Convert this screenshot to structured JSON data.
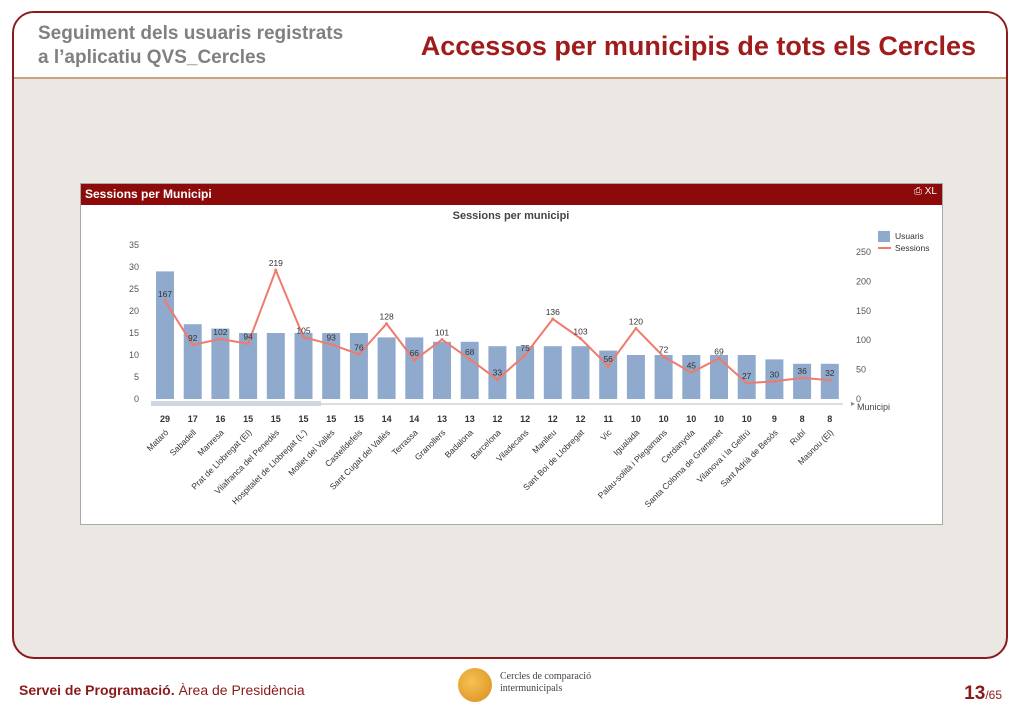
{
  "header": {
    "subtitle_line1": "Seguiment dels usuaris registrats",
    "subtitle_line2": "a l’aplicatiu QVS_Cercles",
    "title": "Accessos per municipis de tots els Cercles"
  },
  "panel": {
    "title": "Sessions per Municipi",
    "icons": "⎙ XL"
  },
  "chart_data": {
    "type": "bar",
    "title": "Sessions per municipi",
    "xlabel": "Municipi",
    "categories": [
      "Mataró",
      "Sabadell",
      "Manresa",
      "Prat de Llobregat (El)",
      "Vilafranca del Penedès",
      "Hospitalet de Llobregat (L')",
      "Mollet del Vallès",
      "Castelldefels",
      "Sant Cugat del Vallès",
      "Terrassa",
      "Granollers",
      "Badalona",
      "Barcelona",
      "Viladecans",
      "Manlleu",
      "Sant Boi de Llobregat",
      "Vic",
      "Igualada",
      "Palau-solità i Plegamans",
      "Cerdanyola",
      "Santa Coloma de Gramenet",
      "Vilanova i la Geltrú",
      "Sant Adrià de Besòs",
      "Rubí",
      "Masnou (El)"
    ],
    "series": [
      {
        "name": "Usuaris",
        "type": "bar",
        "axis": "left",
        "color": "#8faacc",
        "values": [
          29,
          17,
          16,
          15,
          15,
          15,
          15,
          15,
          14,
          14,
          13,
          13,
          12,
          12,
          12,
          12,
          11,
          10,
          10,
          10,
          10,
          10,
          9,
          8,
          8
        ]
      },
      {
        "name": "Sessions",
        "type": "line",
        "axis": "right",
        "color": "#ef7b6c",
        "values": [
          167,
          92,
          102,
          94,
          219,
          105,
          93,
          76,
          128,
          66,
          101,
          68,
          33,
          75,
          136,
          103,
          56,
          120,
          72,
          45,
          69,
          27,
          30,
          36,
          32
        ]
      }
    ],
    "left_axis": {
      "min": 0,
      "max": 35,
      "ticks": [
        0,
        5,
        10,
        15,
        20,
        25,
        30,
        35
      ]
    },
    "right_axis": {
      "min": 0,
      "max": 250,
      "ticks": [
        0,
        50,
        100,
        150,
        200,
        250
      ]
    },
    "legend": "top-right",
    "grid": false
  },
  "footer": {
    "org": "Servei de Programació.",
    "dept": "Àrea de Presidència",
    "logo_line1": "Cercles de comparació",
    "logo_line2": "intermunicipals",
    "page_current": "13",
    "page_total": "/65"
  }
}
